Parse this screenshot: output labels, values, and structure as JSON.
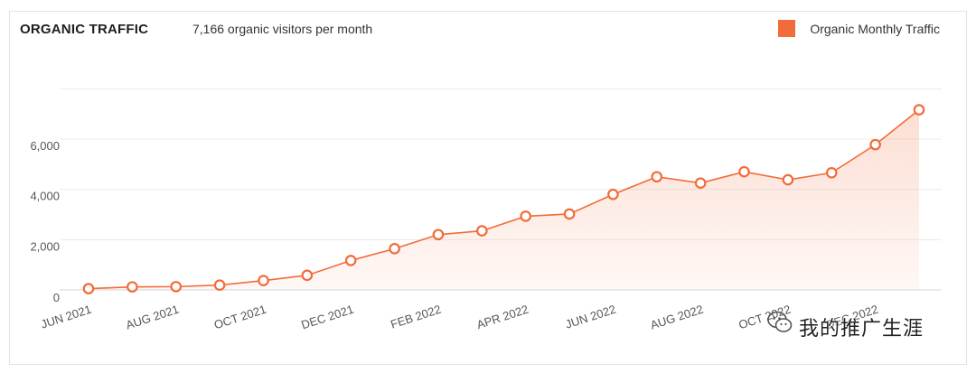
{
  "header": {
    "title": "ORGANIC TRAFFIC",
    "subtitle": "7,166 organic visitors per month"
  },
  "legend": {
    "label": "Organic Monthly Traffic",
    "color": "#f26b3a"
  },
  "watermark": {
    "text": "我的推广生涯"
  },
  "chart_data": {
    "type": "area",
    "title": "ORGANIC TRAFFIC",
    "x": [
      "JUN 2021",
      "JUL 2021",
      "AUG 2021",
      "SEP 2021",
      "OCT 2021",
      "NOV 2021",
      "DEC 2021",
      "JAN 2022",
      "FEB 2022",
      "MAR 2022",
      "APR 2022",
      "MAY 2022",
      "JUN 2022",
      "JUL 2022",
      "AUG 2022",
      "SEP 2022",
      "OCT 2022",
      "NOV 2022",
      "DEC 2022",
      "JAN 2023"
    ],
    "x_tick_labels": [
      "JUN 2021",
      "AUG 2021",
      "OCT 2021",
      "DEC 2021",
      "FEB 2022",
      "APR 2022",
      "JUN 2022",
      "AUG 2022",
      "OCT 2022",
      "DEC 2022"
    ],
    "series": [
      {
        "name": "Organic Monthly Traffic",
        "color": "#f26b3a",
        "values": [
          50,
          120,
          130,
          190,
          370,
          580,
          1170,
          1640,
          2200,
          2350,
          2930,
          3020,
          3800,
          4500,
          4250,
          4700,
          4380,
          4660,
          5780,
          7166
        ]
      }
    ],
    "y_ticks": [
      0,
      2000,
      4000,
      6000
    ],
    "y_tick_labels": [
      "0",
      "2,000",
      "4,000",
      "6,000"
    ],
    "ylim": [
      0,
      8000
    ],
    "grid": true,
    "legend_position": "top-right"
  }
}
